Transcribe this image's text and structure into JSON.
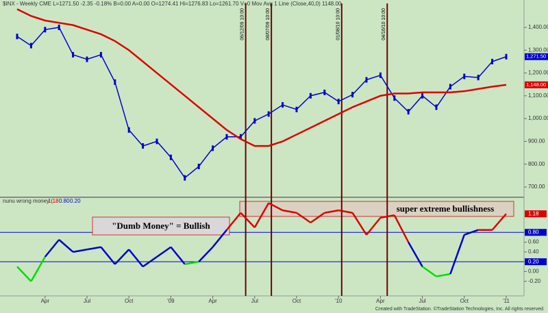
{
  "chart_data": [
    {
      "type": "line",
      "title": "$INX - Weekly CME  L=1271.50 -2.35 -0.18% B=0.00 A=0.00 O=1274.41 Hi=1276.83 Lo=1261.70 V=0 Mov Avg 1 Line (Close,40,0) 1148.00",
      "x": [
        "2008-02",
        "2008-03",
        "2008-04",
        "2008-05",
        "2008-06",
        "2008-07",
        "2008-08",
        "2008-09",
        "2008-10",
        "2008-11",
        "2008-12",
        "2009-01",
        "2009-02",
        "2009-03",
        "2009-04",
        "2009-05",
        "2009-06",
        "2009-07",
        "2009-08",
        "2009-09",
        "2009-10",
        "2009-11",
        "2009-12",
        "2010-01",
        "2010-02",
        "2010-03",
        "2010-04",
        "2010-05",
        "2010-06",
        "2010-07",
        "2010-08",
        "2010-09",
        "2010-10",
        "2010-11",
        "2010-12",
        "2011-01"
      ],
      "xticks": [
        {
          "value": "2008-04",
          "label": "Apr"
        },
        {
          "value": "2008-07",
          "label": "Jul"
        },
        {
          "value": "2008-10",
          "label": "Oct"
        },
        {
          "value": "2009-01",
          "label": "'09"
        },
        {
          "value": "2009-04",
          "label": "Apr"
        },
        {
          "value": "2009-07",
          "label": "Jul"
        },
        {
          "value": "2009-10",
          "label": "Oct"
        },
        {
          "value": "2010-01",
          "label": "'10"
        },
        {
          "value": "2010-04",
          "label": "Apr"
        },
        {
          "value": "2010-07",
          "label": "Jul"
        },
        {
          "value": "2010-10",
          "label": "Oct"
        },
        {
          "value": "2011-01",
          "label": "'11"
        }
      ],
      "series": [
        {
          "color": "#0000cc",
          "values": [
            1360,
            1320,
            1390,
            1400,
            1280,
            1260,
            1280,
            1160,
            950,
            880,
            900,
            830,
            740,
            790,
            870,
            920,
            920,
            990,
            1020,
            1060,
            1040,
            1100,
            1115,
            1075,
            1105,
            1170,
            1190,
            1090,
            1030,
            1100,
            1050,
            1140,
            1185,
            1180,
            1250,
            1271.5
          ],
          "last_label": "1,271.50"
        },
        {
          "color": "#dd0000",
          "values": [
            1480,
            1450,
            1430,
            1420,
            1410,
            1390,
            1370,
            1340,
            1300,
            1250,
            1200,
            1150,
            1100,
            1050,
            1000,
            950,
            910,
            880,
            880,
            900,
            930,
            960,
            990,
            1020,
            1050,
            1075,
            1100,
            1110,
            1110,
            1115,
            1115,
            1115,
            1120,
            1130,
            1140,
            1148
          ],
          "last_label": "1,148.00"
        }
      ],
      "ylim": [
        664,
        1505
      ],
      "yticks": [
        {
          "value": 700,
          "label": "700.00"
        },
        {
          "value": 800,
          "label": "800.00"
        },
        {
          "value": 900,
          "label": "900.00"
        },
        {
          "value": 1000,
          "label": "1,000.00"
        },
        {
          "value": 1100,
          "label": "1,100.00"
        },
        {
          "value": 1200,
          "label": "1,200.00"
        },
        {
          "value": 1300,
          "label": "1,300.00"
        },
        {
          "value": 1400,
          "label": "1,400.00"
        }
      ],
      "events": [
        "06/12/09 10:00",
        "08/07/09 10:00",
        "01/08/10 10:00",
        "04/16/10 10:00"
      ]
    },
    {
      "type": "line",
      "title": "nunu wrong money (...",
      "legend_values": [
        "1.18",
        "0.80",
        "0.20"
      ],
      "series": [
        {
          "colors": [
            "#00dd00",
            "#0000cc",
            "#dd0000"
          ],
          "values": [
            0.1,
            -0.2,
            0.3,
            0.65,
            0.4,
            0.45,
            0.5,
            0.15,
            0.45,
            0.1,
            0.3,
            0.5,
            0.15,
            0.2,
            0.5,
            0.85,
            1.2,
            0.9,
            1.4,
            1.25,
            1.2,
            1.0,
            1.2,
            1.25,
            1.2,
            0.75,
            1.1,
            1.15,
            0.6,
            0.1,
            -0.1,
            -0.05,
            0.75,
            0.85,
            0.85,
            1.18
          ],
          "last_label": "1.18"
        }
      ],
      "ylim": [
        -0.4,
        1.49
      ],
      "yticks": [
        {
          "value": -0.2,
          "label": "-0.20"
        },
        {
          "value": 0,
          "label": "0.00"
        },
        {
          "value": 0.4,
          "label": "0.40"
        },
        {
          "value": 0.6,
          "label": "0.60"
        }
      ],
      "hlines": [
        {
          "value": 0.2,
          "label": "0.20"
        },
        {
          "value": 0.8,
          "label": "0.80"
        }
      ],
      "annotations": [
        "\"Dumb Money\" = Bullish",
        "super extreme bullishness"
      ]
    }
  ],
  "footer": "Created with TradeStation. ©TradeStation Technologies, Inc. All rights reserved."
}
